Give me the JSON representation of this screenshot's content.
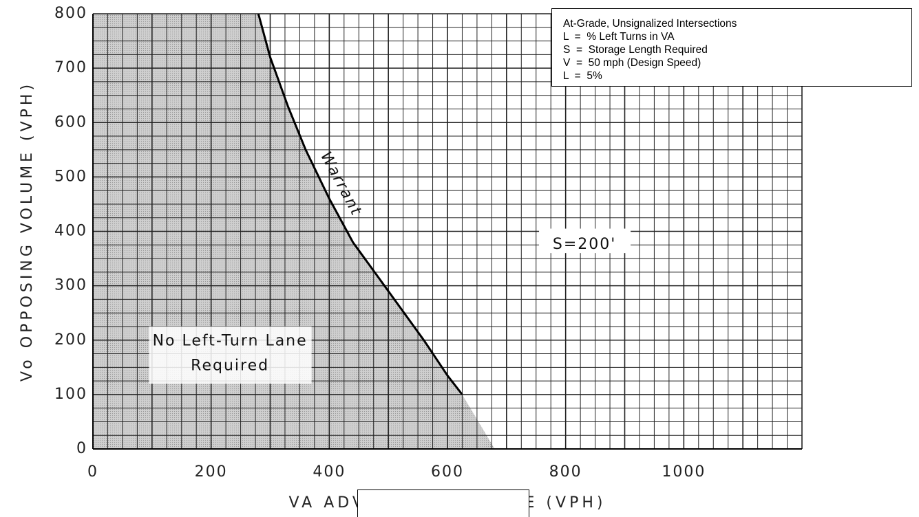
{
  "notes_box": {
    "lines": [
      "At-Grade, Unsignalized Intersections",
      "L  =  % Left Turns in VA",
      "S  =  Storage Length Required",
      "V  =  50 mph (Design Speed)",
      "L  =  5%"
    ]
  },
  "chart_data": {
    "type": "line",
    "xlabel": "VA ADVANCING VOLUME (VPH)",
    "ylabel": "Vo OPPOSING VOLUME (VPH)",
    "xlim": [
      0,
      1200
    ],
    "ylim": [
      0,
      800
    ],
    "x_ticks": [
      0,
      200,
      400,
      600,
      800,
      1000
    ],
    "x_tick_labels": [
      "0",
      "200",
      "400",
      "600",
      "800",
      "1000"
    ],
    "y_ticks": [
      0,
      100,
      200,
      300,
      400,
      500,
      600,
      700,
      800
    ],
    "y_tick_labels": [
      "0",
      "100",
      "200",
      "300",
      "400",
      "500",
      "600",
      "700",
      "800"
    ],
    "grid": true,
    "series": [
      {
        "name": "Warrant",
        "x": [
          280,
          300,
          330,
          360,
          400,
          440,
          480,
          520,
          560,
          600,
          625
        ],
        "y": [
          800,
          720,
          630,
          550,
          460,
          380,
          320,
          260,
          200,
          135,
          100
        ]
      }
    ],
    "regions": [
      {
        "label": [
          "No Left-Turn Lane",
          "Required"
        ],
        "fill": "#c6c6c6"
      },
      {
        "label": [
          "S=200'"
        ],
        "fill": "#ffffff"
      }
    ],
    "colors": {
      "grid": "#222222",
      "shade": "#c6c6c6",
      "curve": "#000000"
    }
  }
}
